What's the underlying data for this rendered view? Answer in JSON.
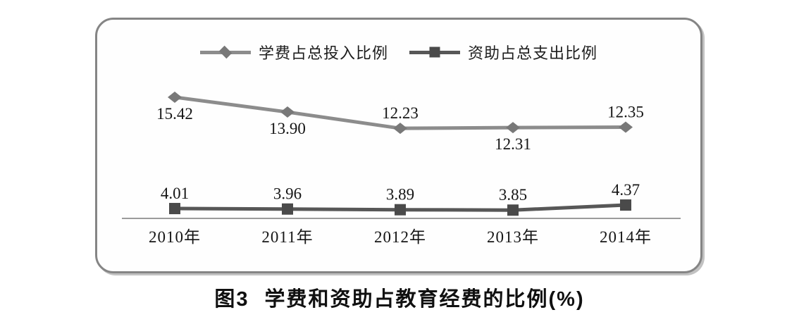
{
  "page": {
    "background": "#ffffff"
  },
  "frame": {
    "border_color": "#858585",
    "shadow_color": "#c2c2c2"
  },
  "chart_data": {
    "type": "line",
    "categories": [
      "2010年",
      "2011年",
      "2012年",
      "2013年",
      "2014年"
    ],
    "series": [
      {
        "name": "学费占总投入比例",
        "marker": "diamond",
        "line_color": "#8c8c8c",
        "marker_color": "#787878",
        "values": [
          15.42,
          13.9,
          12.23,
          12.31,
          12.35
        ],
        "value_labels": [
          "15.42",
          "13.90",
          "12.23",
          "12.31",
          "12.35"
        ],
        "label_sides": [
          "below",
          "below",
          "above",
          "below",
          "above"
        ]
      },
      {
        "name": "资助占总支出比例",
        "marker": "square",
        "line_color": "#575757",
        "marker_color": "#4a4a4a",
        "values": [
          4.01,
          3.96,
          3.89,
          3.85,
          4.37
        ],
        "value_labels": [
          "4.01",
          "3.96",
          "3.89",
          "3.85",
          "4.37"
        ],
        "label_sides": [
          "above",
          "above",
          "above",
          "above",
          "above"
        ]
      }
    ],
    "title": "图3 学费和资助占教育经费的比例(%)",
    "xlabel": "",
    "ylabel": "",
    "ylim": [
      3,
      16
    ],
    "grid": false,
    "legend_position": "top-center",
    "axis_line_color": "#9b9b9b",
    "label_color": "#151515"
  },
  "caption": {
    "prefix": "图3",
    "text": "学费和资助占教育经费的比例(%)"
  }
}
